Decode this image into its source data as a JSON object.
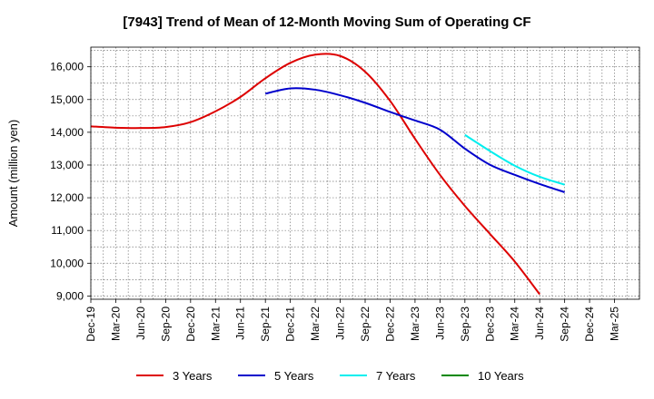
{
  "chart_data": {
    "type": "line",
    "title": "[7943]  Trend of Mean of 12-Month Moving Sum of Operating CF",
    "xlabel": "",
    "ylabel": "Amount (million yen)",
    "ylim": [
      8900,
      16600
    ],
    "y_ticks": [
      9000,
      10000,
      11000,
      12000,
      13000,
      14000,
      15000,
      16000
    ],
    "y_tick_labels": [
      "9,000",
      "10,000",
      "11,000",
      "12,000",
      "13,000",
      "14,000",
      "15,000",
      "16,000"
    ],
    "x_tick_labels": [
      "Dec-19",
      "Mar-20",
      "Jun-20",
      "Sep-20",
      "Dec-20",
      "Mar-21",
      "Jun-21",
      "Sep-21",
      "Dec-21",
      "Mar-22",
      "Jun-22",
      "Sep-22",
      "Dec-22",
      "Mar-23",
      "Jun-23",
      "Sep-23",
      "Dec-23",
      "Mar-24",
      "Jun-24",
      "Sep-24",
      "Dec-24",
      "Mar-25"
    ],
    "grid": true,
    "legend_position": "bottom",
    "series": [
      {
        "name": "3 Years",
        "color": "#dd0000",
        "points": [
          [
            0,
            14180
          ],
          [
            1,
            14140
          ],
          [
            2,
            14130
          ],
          [
            3,
            14160
          ],
          [
            4,
            14310
          ],
          [
            5,
            14640
          ],
          [
            6,
            15080
          ],
          [
            7,
            15650
          ],
          [
            8,
            16120
          ],
          [
            9,
            16370
          ],
          [
            10,
            16330
          ],
          [
            11,
            15850
          ],
          [
            12,
            14960
          ],
          [
            13,
            13800
          ],
          [
            14,
            12700
          ],
          [
            15,
            11750
          ],
          [
            16,
            10900
          ],
          [
            17,
            10050
          ],
          [
            18,
            9050
          ]
        ],
        "x_offset": 0
      },
      {
        "name": "5 Years",
        "color": "#0000cc",
        "points": [
          [
            0,
            15180
          ],
          [
            1,
            15340
          ],
          [
            2,
            15300
          ],
          [
            3,
            15130
          ],
          [
            4,
            14900
          ],
          [
            5,
            14620
          ],
          [
            6,
            14360
          ],
          [
            7,
            14080
          ],
          [
            8,
            13500
          ],
          [
            9,
            13010
          ],
          [
            10,
            12700
          ],
          [
            11,
            12420
          ],
          [
            12,
            12170
          ]
        ],
        "x_offset": 7
      },
      {
        "name": "7 Years",
        "color": "#00eeee",
        "points": [
          [
            0,
            13920
          ],
          [
            1,
            13430
          ],
          [
            2,
            12980
          ],
          [
            3,
            12640
          ],
          [
            4,
            12400
          ]
        ],
        "x_offset": 15
      },
      {
        "name": "10 Years",
        "color": "#008800",
        "points": [],
        "x_offset": 0
      }
    ]
  }
}
